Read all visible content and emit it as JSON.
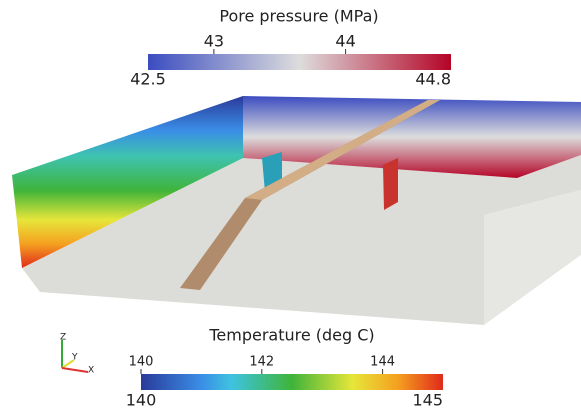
{
  "pore_pressure_bar": {
    "title": "Pore pressure (MPa)",
    "range": [
      42.5,
      44.8
    ],
    "ticks": [
      43,
      44
    ]
  },
  "temperature_bar": {
    "title": "Temperature (deg C)",
    "range": [
      140,
      145
    ],
    "ticks": [
      140,
      142,
      144
    ]
  },
  "axes_triad": {
    "z": "Z",
    "y": "Y",
    "x": "X"
  }
}
